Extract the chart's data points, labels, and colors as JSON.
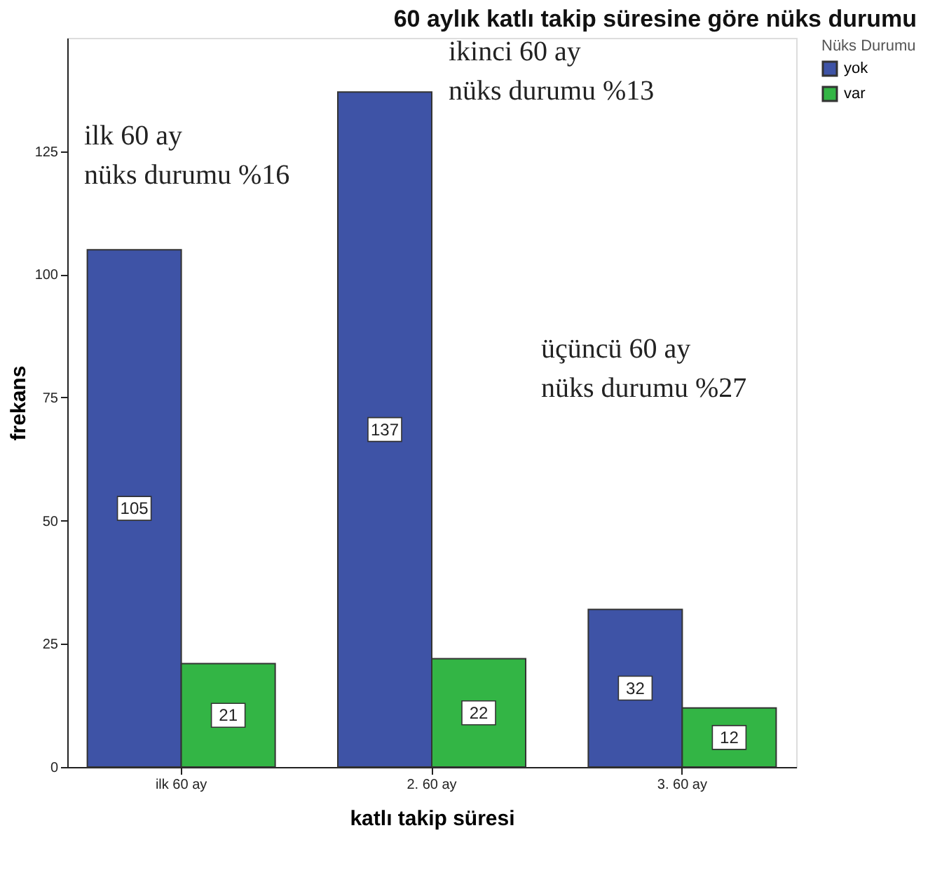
{
  "chart_data": {
    "type": "bar",
    "title": "60 aylık katlı takip süresine göre nüks durumu",
    "xlabel": "katlı takip süresi",
    "ylabel": "frekans",
    "legend_title": "Nüks Durumu",
    "categories": [
      "ilk 60 ay",
      "2. 60 ay",
      "3. 60 ay"
    ],
    "series": [
      {
        "name": "yok",
        "color": "#3e53a6",
        "values": [
          105,
          137,
          32
        ]
      },
      {
        "name": "var",
        "color": "#33b545",
        "values": [
          21,
          22,
          12
        ]
      }
    ],
    "ylim": [
      0,
      148
    ],
    "yticks": [
      0,
      25,
      50,
      75,
      100,
      125
    ],
    "data_labels": true,
    "grid": false,
    "legend": "top right",
    "annotations": [
      "ilk 60 ay\nnüks durumu %16",
      "ikinci 60 ay\nnüks durumu %13",
      "üçüncü 60 ay\nnüks durumu %27"
    ]
  }
}
